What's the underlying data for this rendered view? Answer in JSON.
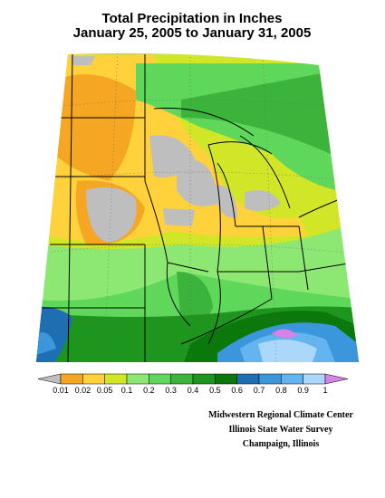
{
  "title": [
    "Total Precipitation in Inches",
    "January 25, 2005 to January 31, 2005"
  ],
  "legend": {
    "labels": [
      0.01,
      0.02,
      0.05,
      0.1,
      0.2,
      0.3,
      0.4,
      0.5,
      0.6,
      0.7,
      0.8,
      0.9,
      1
    ],
    "colors": [
      "#bebebe",
      "#f5a623",
      "#ffd23c",
      "#d2e628",
      "#8ce873",
      "#5fd75a",
      "#3cb43c",
      "#1e961e",
      "#0a780a",
      "#1e6eb4",
      "#3c96dc",
      "#64b4f0",
      "#aad7fa",
      "#d682e6"
    ]
  },
  "credits": [
    "Midwestern Regional Climate Center",
    "Illinois State Water Survey",
    "Champaign, Illinois"
  ]
}
